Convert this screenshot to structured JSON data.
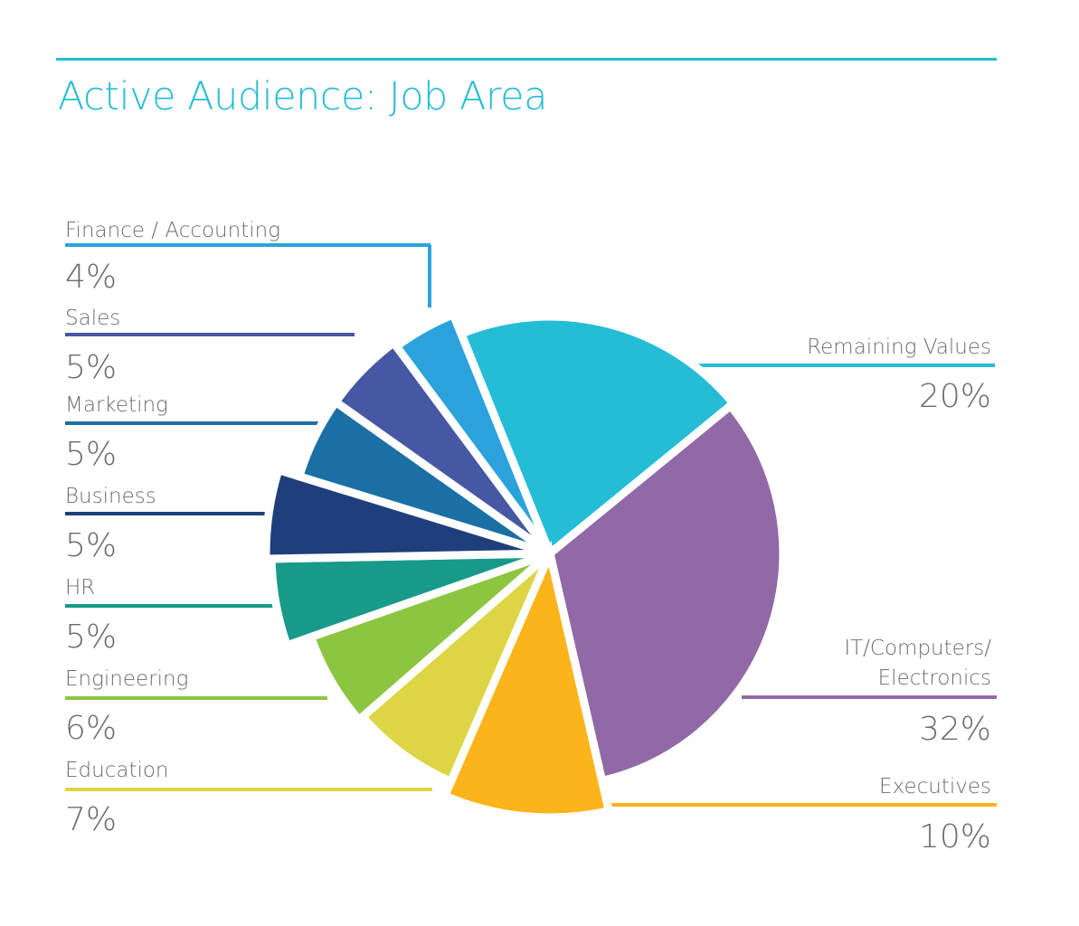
{
  "chart_data": {
    "type": "pie",
    "title": "Active Audience: Job Area",
    "unit": "%",
    "slices": [
      {
        "label": "Remaining Values",
        "value": 20,
        "display": "20%",
        "color": "#25bcd6"
      },
      {
        "label": "IT/Computers/",
        "label2": "Electronics",
        "value": 32,
        "display": "32%",
        "color": "#9169a6"
      },
      {
        "label": "Executives",
        "value": 10,
        "display": "10%",
        "color": "#fbb41a"
      },
      {
        "label": "Education",
        "value": 7,
        "display": "7%",
        "color": "#ddd544"
      },
      {
        "label": "Engineering",
        "value": 6,
        "display": "6%",
        "color": "#8cc641"
      },
      {
        "label": "HR",
        "value": 5,
        "display": "5%",
        "color": "#179a89"
      },
      {
        "label": "Business",
        "value": 5,
        "display": "5%",
        "color": "#1f3f7c"
      },
      {
        "label": "Marketing",
        "value": 5,
        "display": "5%",
        "color": "#1a70a4"
      },
      {
        "label": "Sales",
        "value": 5,
        "display": "5%",
        "color": "#4657a3"
      },
      {
        "label": "Finance / Accounting",
        "value": 4,
        "display": "4%",
        "color": "#2ca2dc"
      }
    ],
    "start_angle_deg": -112,
    "direction": "clockwise"
  },
  "colors": {
    "accent": "#25bcd6",
    "text": "#6d6d6d"
  }
}
